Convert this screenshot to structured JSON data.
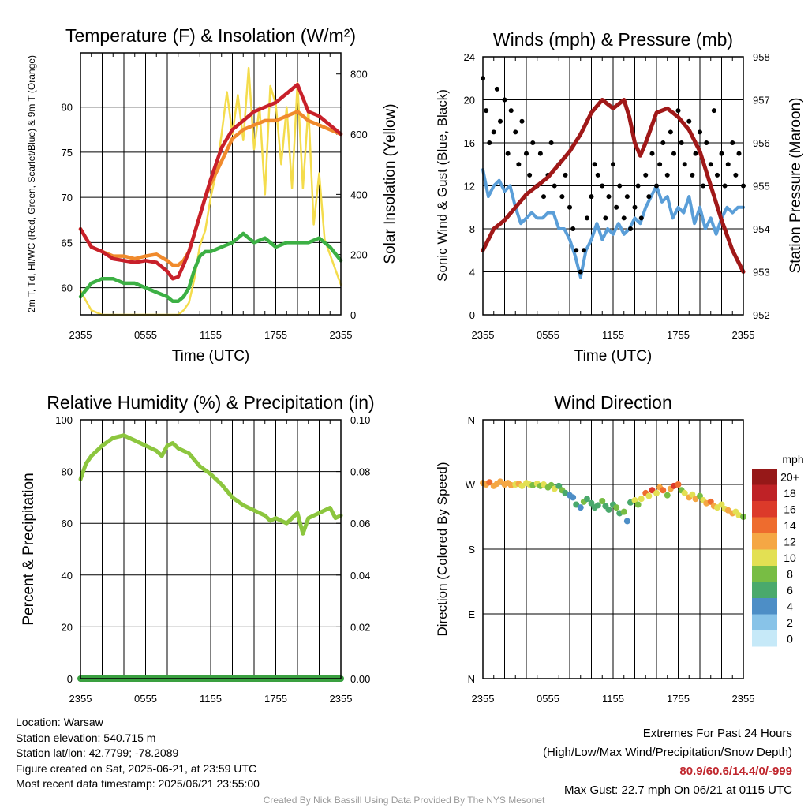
{
  "colors": {
    "temp": "#c8202a",
    "dewpoint": "#3cb044",
    "hiwc": "#e0221f",
    "t9m": "#f08a2c",
    "solar": "#f4dc4c",
    "wind": "#5a9ed8",
    "gust": "#000000",
    "pressure": "#a01818",
    "rh": "#8cc63e",
    "precip": "#3aa040"
  },
  "chart_data": [
    {
      "id": "temp",
      "type": "line",
      "title": "Temperature (F) & Insolation (W/m²)",
      "xlabel": "Time (UTC)",
      "ylabel": "2m T, Td, HI/WC (Red, Green, Scarlet/Blue) & 9m T (Orange)",
      "y2label": "Solar Insolation (Yellow)",
      "x_ticks": [
        "2355",
        "0555",
        "1155",
        "1755",
        "2355"
      ],
      "ylim": [
        57,
        86
      ],
      "y_ticks": [
        60,
        65,
        70,
        75,
        80
      ],
      "y2lim": [
        0,
        870
      ],
      "y2_ticks": [
        0,
        200,
        400,
        600,
        800
      ],
      "grid": true,
      "series": [
        {
          "key": "t9m",
          "axis": "left",
          "x": [
            0,
            1,
            2,
            3,
            4,
            5,
            6,
            7,
            8,
            8.5,
            9,
            9.5,
            10,
            10.5,
            11,
            11.5,
            12,
            13,
            14,
            15,
            16,
            17,
            18,
            19,
            20,
            21,
            22,
            23,
            24
          ],
          "y": [
            66.5,
            64.5,
            64,
            63.5,
            63.5,
            63.2,
            63.5,
            63.7,
            63,
            62.5,
            62.5,
            63,
            64,
            66,
            68,
            70,
            71.5,
            74,
            76.5,
            77.5,
            78,
            78.5,
            78.5,
            79,
            79.5,
            78.5,
            78,
            77.5,
            77
          ]
        },
        {
          "key": "temp",
          "axis": "left",
          "x": [
            0,
            1,
            2,
            3,
            4,
            5,
            6,
            7,
            8,
            8.5,
            9,
            9.5,
            10,
            10.5,
            11,
            11.5,
            12,
            13,
            14,
            15,
            16,
            17,
            18,
            19,
            20,
            21,
            22,
            23,
            24
          ],
          "y": [
            66.5,
            64.5,
            64,
            63.2,
            63,
            62.8,
            63,
            62.8,
            61.8,
            61,
            61.2,
            62.5,
            64,
            66,
            68,
            70,
            72,
            75.5,
            77.5,
            78.5,
            79.5,
            80,
            80.5,
            81.5,
            82.5,
            79.5,
            79,
            78,
            77
          ]
        },
        {
          "key": "dewpoint",
          "axis": "left",
          "x": [
            0,
            1,
            2,
            3,
            4,
            5,
            6,
            7,
            8,
            8.5,
            9,
            9.5,
            10,
            10.5,
            11,
            11.5,
            12,
            13,
            14,
            15,
            16,
            17,
            18,
            19,
            20,
            21,
            22,
            23,
            24
          ],
          "y": [
            59,
            60.5,
            61,
            61,
            60.5,
            60.5,
            60,
            59.5,
            59,
            58.5,
            58.5,
            59,
            60,
            62,
            63.5,
            64,
            64,
            64.5,
            65,
            66,
            65,
            65.5,
            64.5,
            65,
            65,
            65,
            65.5,
            64.5,
            63
          ]
        },
        {
          "key": "solar",
          "axis": "right",
          "x": [
            0,
            0.3,
            1,
            2,
            3,
            4,
            5,
            6,
            7,
            8,
            9,
            9.5,
            10,
            10.5,
            11,
            11.5,
            12,
            12.5,
            13,
            13.5,
            14,
            14.5,
            15,
            15.5,
            16,
            16.5,
            17,
            17.5,
            18,
            18.5,
            19,
            19.5,
            20,
            20.5,
            21,
            21.5,
            22,
            22.5,
            23,
            23.5,
            24
          ],
          "y": [
            80,
            60,
            15,
            0,
            0,
            0,
            0,
            0,
            0,
            0,
            0,
            15,
            40,
            120,
            230,
            280,
            390,
            470,
            600,
            740,
            600,
            730,
            580,
            820,
            550,
            690,
            400,
            760,
            700,
            500,
            690,
            420,
            770,
            420,
            690,
            300,
            470,
            250,
            200,
            150,
            100
          ]
        }
      ]
    },
    {
      "id": "wind",
      "type": "line",
      "title": "Winds (mph) & Pressure (mb)",
      "xlabel": "Time (UTC)",
      "ylabel": "Sonic Wind & Gust (Blue, Black)",
      "y2label": "Station Pressure (Maroon)",
      "x_ticks": [
        "2355",
        "0555",
        "1155",
        "1755",
        "2355"
      ],
      "ylim": [
        0,
        24
      ],
      "y_ticks": [
        0,
        4,
        8,
        12,
        16,
        20,
        24
      ],
      "y2lim": [
        952,
        958
      ],
      "y2_ticks": [
        952,
        953,
        954,
        955,
        956,
        957,
        958
      ],
      "grid": true,
      "series": [
        {
          "key": "wind",
          "axis": "left",
          "x": [
            0,
            0.5,
            1,
            1.5,
            2,
            2.5,
            3,
            3.5,
            4,
            4.5,
            5,
            5.5,
            6,
            6.5,
            7,
            7.5,
            8,
            8.5,
            9,
            9.5,
            10,
            10.5,
            11,
            11.5,
            12,
            12.5,
            13,
            13.5,
            14,
            14.5,
            15,
            15.5,
            16,
            16.5,
            17,
            17.5,
            18,
            18.5,
            19,
            19.5,
            20,
            20.5,
            21,
            21.5,
            22,
            22.5,
            23,
            23.5,
            24
          ],
          "y": [
            13.5,
            11,
            12,
            12.5,
            11.5,
            12,
            10,
            8.5,
            9,
            9.5,
            9,
            9,
            9.5,
            9.5,
            8,
            8,
            7,
            5.5,
            3.5,
            6,
            7,
            8.5,
            7,
            8,
            7.5,
            8.5,
            7.5,
            8,
            9,
            8.5,
            10,
            11,
            12,
            10.5,
            11,
            9,
            10,
            9.5,
            11,
            8.5,
            10,
            8,
            9,
            7.5,
            9,
            10,
            9.5,
            10,
            10
          ]
        },
        {
          "key": "gust",
          "axis": "left",
          "mode": "markers",
          "x": [
            0,
            0.3,
            0.6,
            1,
            1.3,
            1.6,
            2,
            2.3,
            2.6,
            3,
            3.3,
            3.6,
            4,
            4.3,
            4.6,
            5,
            5.3,
            5.6,
            6,
            6.3,
            6.6,
            7,
            7.3,
            7.6,
            8,
            8.3,
            8.6,
            9,
            9.3,
            9.6,
            10,
            10.3,
            10.6,
            11,
            11.3,
            11.6,
            12,
            12.3,
            12.6,
            13,
            13.3,
            13.6,
            14,
            14.3,
            14.6,
            15,
            15.3,
            15.6,
            16,
            16.3,
            16.6,
            17,
            17.3,
            17.6,
            18,
            18.3,
            18.6,
            19,
            19.3,
            19.6,
            20,
            20.3,
            20.6,
            21,
            21.3,
            21.6,
            22,
            22.3,
            22.6,
            23,
            23.3,
            23.6,
            24
          ],
          "y": [
            22,
            19,
            16,
            17,
            21,
            18,
            20,
            15,
            19,
            17,
            14,
            18,
            15,
            13,
            16,
            12,
            15,
            11,
            13,
            16,
            12,
            14,
            11,
            13,
            10,
            8,
            6,
            4,
            6,
            9,
            11,
            14,
            13,
            12,
            9,
            11,
            14,
            10,
            12,
            9,
            11,
            8,
            10,
            12,
            9,
            13,
            11,
            15,
            12,
            14,
            16,
            13,
            17,
            15,
            19,
            16,
            14,
            18,
            13,
            15,
            17,
            12,
            16,
            14,
            19,
            13,
            15,
            12,
            14,
            16,
            13,
            15,
            12
          ]
        },
        {
          "key": "pressure",
          "axis": "right",
          "x": [
            0,
            1,
            2,
            3,
            4,
            5,
            6,
            7,
            8,
            8.5,
            9,
            10,
            11,
            12,
            13,
            13.5,
            14,
            14.5,
            15,
            16,
            17,
            17.5,
            18,
            19,
            20,
            21,
            22,
            23,
            24
          ],
          "y": [
            953.5,
            954,
            954.2,
            954.5,
            954.8,
            955,
            955.2,
            955.5,
            955.8,
            956,
            956.2,
            956.7,
            957,
            956.8,
            957,
            956.6,
            956,
            955.7,
            956,
            956.7,
            956.8,
            956.7,
            956.6,
            956.3,
            955.8,
            955,
            954.2,
            953.5,
            953
          ]
        }
      ]
    },
    {
      "id": "rh",
      "type": "line",
      "title": "Relative Humidity (%) & Precipitation (in)",
      "xlabel": "",
      "ylabel": "Percent & Precipitation",
      "x_ticks": [
        "2355",
        "0555",
        "1155",
        "1755",
        "2355"
      ],
      "ylim": [
        0,
        100
      ],
      "y_ticks": [
        0,
        20,
        40,
        60,
        80,
        100
      ],
      "y2lim": [
        0,
        0.1
      ],
      "y2_ticks": [
        "0.00",
        "0.02",
        "0.04",
        "0.06",
        "0.08",
        "0.10"
      ],
      "grid": true,
      "series": [
        {
          "key": "rh",
          "axis": "left",
          "x": [
            0,
            0.5,
            1,
            2,
            3,
            4,
            4.5,
            5,
            6,
            7,
            7.5,
            8,
            8.5,
            9,
            10,
            11,
            12,
            13,
            14,
            15,
            16,
            17,
            17.5,
            18,
            19,
            20,
            20.5,
            21,
            22,
            23,
            23.5,
            24
          ],
          "y": [
            77,
            83,
            86,
            90,
            93,
            94,
            93,
            92,
            90,
            88,
            86,
            90,
            91,
            89,
            87,
            82,
            79,
            75,
            70,
            67,
            65,
            63,
            61,
            62,
            60,
            64,
            56,
            62,
            64,
            66,
            62,
            63
          ]
        },
        {
          "key": "precip",
          "axis": "right",
          "x": [
            0,
            24
          ],
          "y": [
            0,
            0
          ]
        }
      ]
    },
    {
      "id": "wdir",
      "type": "scatter",
      "title": "Wind Direction",
      "xlabel": "",
      "ylabel": "Direction (Colored By Speed)",
      "x_ticks": [
        "2355",
        "0555",
        "1155",
        "1755",
        "2355"
      ],
      "ylim": [
        0,
        360
      ],
      "y_ticks": [
        "N",
        "E",
        "S",
        "W",
        "N"
      ],
      "grid": true,
      "colorbar": {
        "unit": "mph",
        "labels": [
          "0",
          "2",
          "4",
          "6",
          "8",
          "10",
          "12",
          "14",
          "16",
          "18",
          "20+"
        ],
        "colors": [
          "#c6e9f8",
          "#88c3e8",
          "#4d8ec6",
          "#4aa96c",
          "#78bd44",
          "#e3e053",
          "#f5a744",
          "#ee6c2e",
          "#dc3a2a",
          "#bf2226",
          "#961818"
        ]
      },
      "series": [
        {
          "x": [
            0,
            0.3,
            0.6,
            1,
            1.3,
            1.6,
            2,
            2.3,
            2.6,
            3,
            3.3,
            3.6,
            4,
            4.3,
            4.6,
            5,
            5.3,
            5.6,
            6,
            6.3,
            6.6,
            7,
            7.3,
            7.6,
            8,
            8.3,
            8.6,
            9,
            9.3,
            9.6,
            10,
            10.3,
            10.6,
            11,
            11.3,
            11.6,
            12,
            12.3,
            12.6,
            13,
            13.3,
            13.6,
            14,
            14.3,
            14.6,
            15,
            15.3,
            15.6,
            16,
            16.3,
            16.6,
            17,
            17.3,
            17.6,
            18,
            18.3,
            18.6,
            19,
            19.3,
            19.6,
            20,
            20.3,
            20.6,
            21,
            21.3,
            21.6,
            22,
            22.3,
            22.6,
            23,
            23.3,
            23.6,
            24
          ],
          "y": [
            272,
            270,
            273,
            268,
            271,
            274,
            270,
            272,
            269,
            270,
            271,
            268,
            272,
            270,
            269,
            271,
            268,
            270,
            266,
            269,
            264,
            268,
            262,
            258,
            255,
            252,
            242,
            238,
            246,
            250,
            244,
            238,
            241,
            247,
            240,
            235,
            242,
            238,
            230,
            232,
            219,
            245,
            248,
            242,
            250,
            258,
            254,
            262,
            258,
            266,
            262,
            255,
            264,
            268,
            270,
            262,
            258,
            252,
            256,
            250,
            254,
            248,
            244,
            246,
            240,
            238,
            242,
            236,
            234,
            230,
            232,
            227,
            225
          ],
          "speed": [
            12,
            12,
            13,
            12,
            11,
            12,
            11,
            12,
            11,
            10,
            11,
            10,
            9,
            10,
            8,
            9,
            8,
            9,
            8,
            7,
            9,
            6,
            8,
            5,
            3,
            4,
            6,
            4,
            7,
            6,
            5,
            6,
            5,
            7,
            5,
            6,
            6,
            8,
            5,
            7,
            3,
            6,
            9,
            7,
            10,
            13,
            9,
            16,
            10,
            12,
            14,
            8,
            11,
            15,
            13,
            8,
            10,
            12,
            9,
            11,
            8,
            10,
            12,
            14,
            11,
            10,
            9,
            10,
            12,
            11,
            9,
            10,
            8
          ]
        }
      ]
    }
  ],
  "info": {
    "location": "Location: Warsaw",
    "elevation": "Station elevation: 540.715 m",
    "latlon": "Station lat/lon: 42.7799; -78.2089",
    "created": "Figure created on Sat, 2025-06-21, at 23:59 UTC",
    "recent": "Most recent data timestamp: 2025/06/21 23:55:00"
  },
  "extremes": {
    "title": "Extremes For Past 24 Hours",
    "subtitle": "(High/Low/Max Wind/Precipitation/Snow Depth)",
    "values": "80.9/60.6/14.4/0/-999",
    "max_gust": "Max Gust: 22.7 mph On 06/21 at 0115 UTC"
  },
  "credit": "Created By Nick Bassill Using Data Provided By The NYS Mesonet"
}
